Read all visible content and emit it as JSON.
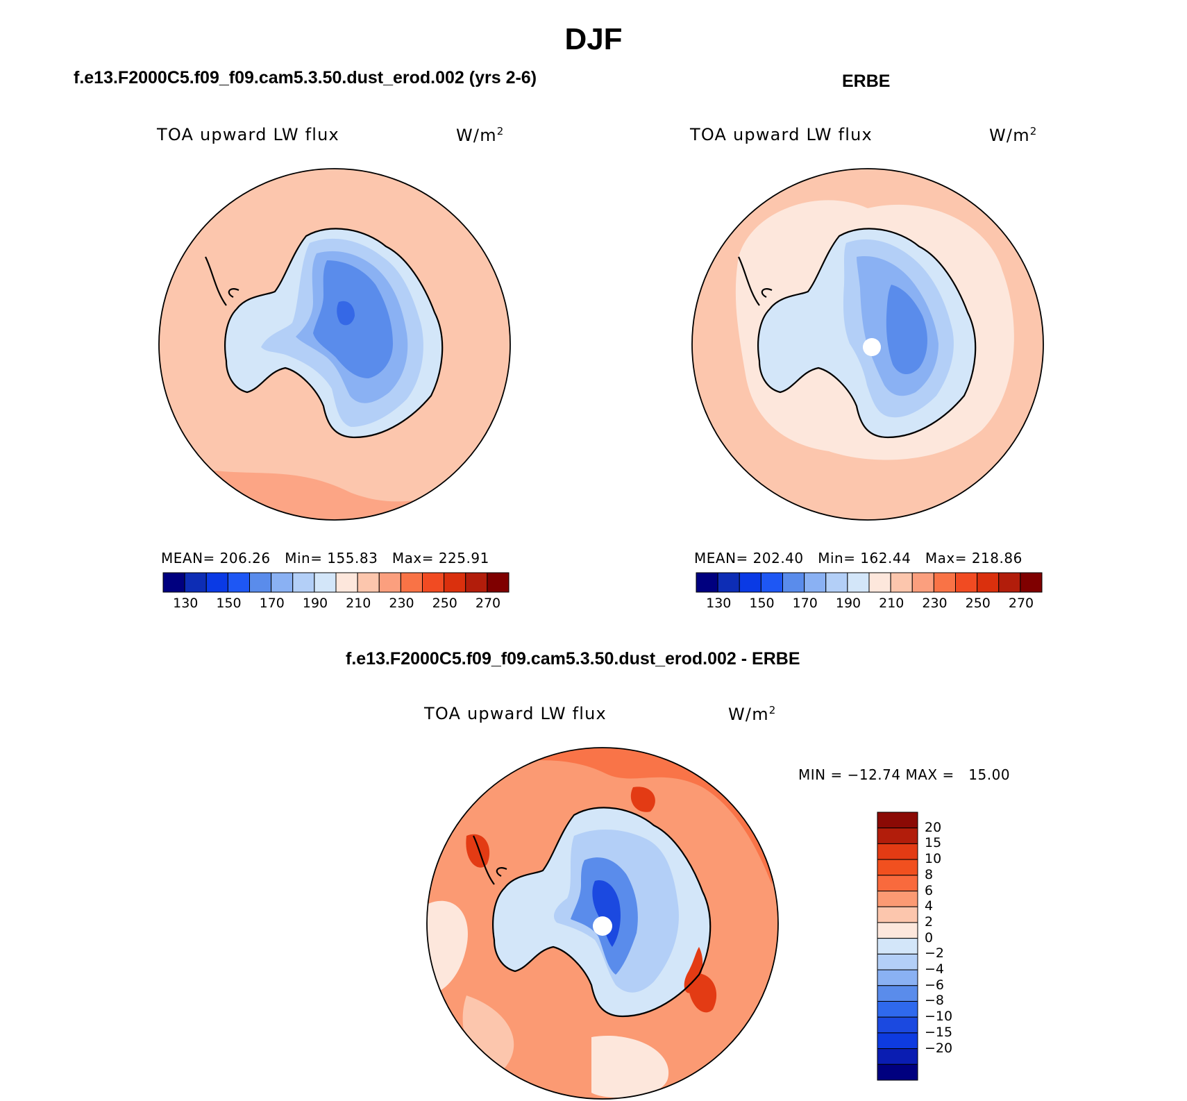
{
  "figure": {
    "season": "DJF",
    "colors": {
      "ocean_model": "#fcc6ad",
      "ocean_model_edge": "#fb9f7e",
      "ocean_obs": "#fde7dc",
      "ocean_obs_band": "#fcc6ad",
      "land_lvl1": "#d3e6f9",
      "land_lvl2": "#b3cff7",
      "land_lvl3": "#8ab1f3",
      "land_lvl4": "#5a8ceb",
      "land_lvl5": "#3568e6",
      "diff_warm1": "#fde7dc",
      "diff_warm2": "#fcc6ad",
      "diff_warm3": "#fb9a73",
      "diff_warm4": "#f96a3d",
      "diff_warm5": "#e33b14",
      "diff_cool1": "#d3e6f9",
      "diff_cool2": "#b3cff7",
      "diff_cool3": "#5a8ceb",
      "diff_cool4": "#1b49e0",
      "coast": "#000000"
    }
  },
  "panels": {
    "model": {
      "title": "f.e13.F2000C5.f09_f09.cam5.3.50.dust_erod.002 (yrs 2-6)",
      "variable": "TOA upward LW flux",
      "units_base": "W/m",
      "units_exp": "2",
      "stats": "MEAN= 206.26   Min= 155.83   Max= 225.91",
      "mean": 206.26,
      "min": 155.83,
      "max": 225.91
    },
    "obs": {
      "title": "ERBE",
      "variable": "TOA upward LW flux",
      "units_base": "W/m",
      "units_exp": "2",
      "stats": "MEAN= 202.40   Min= 162.44   Max= 218.86",
      "mean": 202.4,
      "min": 162.44,
      "max": 218.86
    },
    "diff": {
      "title": "f.e13.F2000C5.f09_f09.cam5.3.50.dust_erod.002 - ERBE",
      "variable": "TOA upward LW flux",
      "units_base": "W/m",
      "units_exp": "2",
      "stats": "MIN = −12.74 MAX =   15.00",
      "min": -12.74,
      "max": 15.0
    }
  },
  "colorbar_abs": {
    "colors": [
      "#00007f",
      "#0d2db5",
      "#0a3ae5",
      "#1e57f4",
      "#5a8ceb",
      "#8ab1f3",
      "#b3cff7",
      "#d3e6f9",
      "#fde7dc",
      "#fcc6ad",
      "#fb9f7e",
      "#f97346",
      "#f14b22",
      "#da300d",
      "#b21d0b",
      "#7f0000"
    ],
    "tick_labels": [
      "130",
      "150",
      "170",
      "190",
      "210",
      "230",
      "250",
      "270"
    ]
  },
  "colorbar_diff": {
    "colors": [
      "#00007f",
      "#0a1db2",
      "#0e3be0",
      "#1b49e0",
      "#2f69ed",
      "#5a8ceb",
      "#8ab1f3",
      "#b3cff7",
      "#d3e6f9",
      "#fde7dc",
      "#fcc6ad",
      "#fb9a73",
      "#f96a3d",
      "#f1501f",
      "#e33b14",
      "#b21d0b",
      "#8b0a05"
    ],
    "tick_labels": [
      "20",
      "15",
      "10",
      "8",
      "6",
      "4",
      "2",
      "0",
      "−2",
      "−4",
      "−6",
      "−8",
      "−10",
      "−15",
      "−20"
    ]
  }
}
